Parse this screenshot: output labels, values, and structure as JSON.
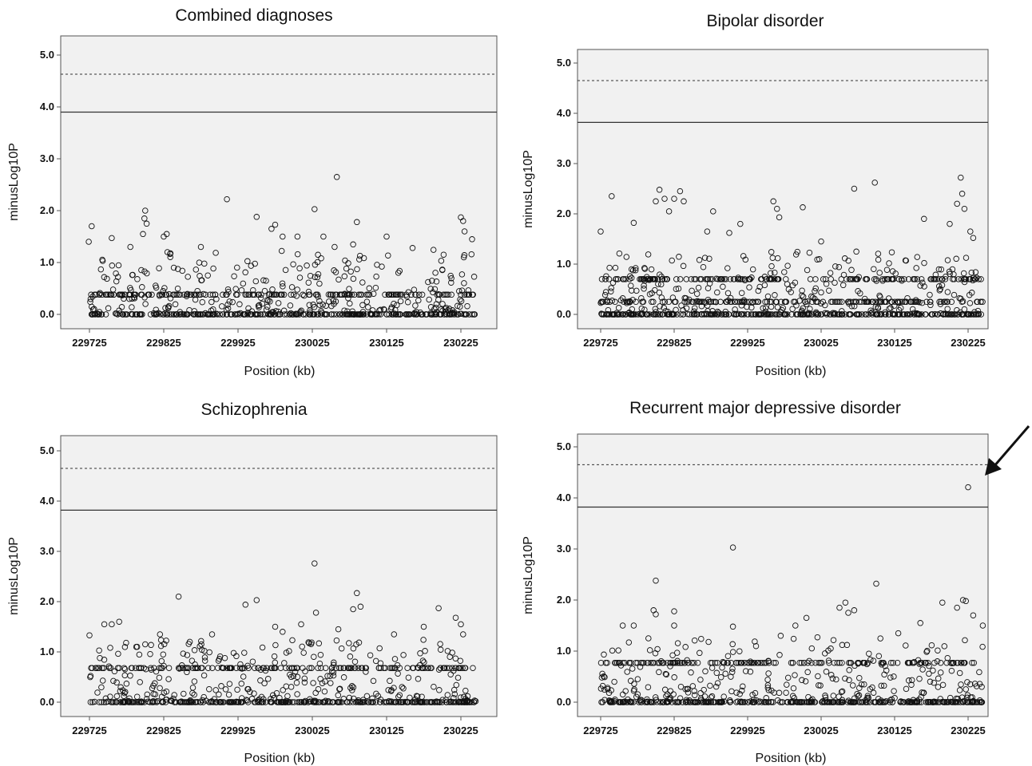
{
  "chart_data": [
    {
      "type": "scatter",
      "title": "Combined diagnoses",
      "xlabel": "Position (kb)",
      "ylabel": "minusLog10P",
      "x_ticks": [
        "229725",
        "229825",
        "229925",
        "230025",
        "230125",
        "230225"
      ],
      "y_ticks": [
        "0.0",
        "1.0",
        "2.0",
        "3.0",
        "4.0",
        "5.0"
      ],
      "xlim": [
        229700,
        230265
      ],
      "ylim": [
        -0.3,
        5.3
      ],
      "thresholds": {
        "solid": 3.9,
        "dotted": 4.63
      },
      "peak_points": [
        {
          "x": 229728,
          "y": 1.7
        },
        {
          "x": 229724,
          "y": 1.4
        },
        {
          "x": 229755,
          "y": 1.47
        },
        {
          "x": 229780,
          "y": 1.3
        },
        {
          "x": 229797,
          "y": 1.55
        },
        {
          "x": 229799,
          "y": 1.85
        },
        {
          "x": 229800,
          "y": 2.0
        },
        {
          "x": 229802,
          "y": 1.75
        },
        {
          "x": 229825,
          "y": 1.5
        },
        {
          "x": 229829,
          "y": 1.55
        },
        {
          "x": 229830,
          "y": 1.2
        },
        {
          "x": 229875,
          "y": 1.3
        },
        {
          "x": 229910,
          "y": 2.22
        },
        {
          "x": 229950,
          "y": 1.88
        },
        {
          "x": 229970,
          "y": 1.65
        },
        {
          "x": 229975,
          "y": 1.73
        },
        {
          "x": 229985,
          "y": 1.5
        },
        {
          "x": 230005,
          "y": 1.5
        },
        {
          "x": 230028,
          "y": 2.03
        },
        {
          "x": 230040,
          "y": 1.5
        },
        {
          "x": 230055,
          "y": 1.3
        },
        {
          "x": 230058,
          "y": 2.65
        },
        {
          "x": 230080,
          "y": 1.35
        },
        {
          "x": 230085,
          "y": 1.78
        },
        {
          "x": 230125,
          "y": 1.5
        },
        {
          "x": 230160,
          "y": 1.28
        },
        {
          "x": 230225,
          "y": 1.87
        },
        {
          "x": 230228,
          "y": 1.8
        },
        {
          "x": 230230,
          "y": 1.6
        },
        {
          "x": 230240,
          "y": 1.45
        }
      ],
      "bands": [
        0.0,
        0.38
      ]
    },
    {
      "type": "scatter",
      "title": "Bipolar disorder",
      "xlabel": "Position (kb)",
      "ylabel": "minusLog10P",
      "x_ticks": [
        "229725",
        "229825",
        "229925",
        "230025",
        "230125",
        "230225"
      ],
      "y_ticks": [
        "0.0",
        "1.0",
        "2.0",
        "3.0",
        "4.0",
        "5.0"
      ],
      "xlim": [
        229700,
        230265
      ],
      "ylim": [
        -0.3,
        5.3
      ],
      "thresholds": {
        "solid": 3.82,
        "dotted": 4.65
      },
      "peak_points": [
        {
          "x": 229725,
          "y": 1.65
        },
        {
          "x": 229740,
          "y": 2.35
        },
        {
          "x": 229770,
          "y": 1.82
        },
        {
          "x": 229800,
          "y": 2.25
        },
        {
          "x": 229805,
          "y": 2.48
        },
        {
          "x": 229812,
          "y": 2.3
        },
        {
          "x": 229818,
          "y": 2.05
        },
        {
          "x": 229825,
          "y": 2.3
        },
        {
          "x": 229833,
          "y": 2.45
        },
        {
          "x": 229838,
          "y": 2.25
        },
        {
          "x": 229870,
          "y": 1.65
        },
        {
          "x": 229878,
          "y": 2.05
        },
        {
          "x": 229900,
          "y": 1.62
        },
        {
          "x": 229915,
          "y": 1.8
        },
        {
          "x": 229960,
          "y": 2.25
        },
        {
          "x": 229965,
          "y": 2.1
        },
        {
          "x": 229968,
          "y": 1.93
        },
        {
          "x": 230000,
          "y": 2.13
        },
        {
          "x": 230025,
          "y": 1.45
        },
        {
          "x": 230070,
          "y": 2.5
        },
        {
          "x": 230098,
          "y": 2.62
        },
        {
          "x": 230165,
          "y": 1.9
        },
        {
          "x": 230200,
          "y": 1.8
        },
        {
          "x": 230210,
          "y": 2.2
        },
        {
          "x": 230215,
          "y": 2.72
        },
        {
          "x": 230217,
          "y": 2.4
        },
        {
          "x": 230220,
          "y": 2.1
        },
        {
          "x": 230228,
          "y": 1.65
        },
        {
          "x": 230232,
          "y": 1.52
        }
      ],
      "bands": [
        0.0,
        0.25,
        0.7
      ]
    },
    {
      "type": "scatter",
      "title": "Schizophrenia",
      "xlabel": "Position (kb)",
      "ylabel": "minusLog10P",
      "x_ticks": [
        "229725",
        "229825",
        "229925",
        "230025",
        "230125",
        "230225"
      ],
      "y_ticks": [
        "0.0",
        "1.0",
        "2.0",
        "3.0",
        "4.0",
        "5.0"
      ],
      "xlim": [
        229700,
        230265
      ],
      "ylim": [
        -0.3,
        5.3
      ],
      "thresholds": {
        "solid": 3.82,
        "dotted": 4.65
      },
      "peak_points": [
        {
          "x": 229725,
          "y": 1.33
        },
        {
          "x": 229745,
          "y": 1.55
        },
        {
          "x": 229755,
          "y": 1.55
        },
        {
          "x": 229765,
          "y": 1.6
        },
        {
          "x": 229800,
          "y": 1.15
        },
        {
          "x": 229820,
          "y": 1.35
        },
        {
          "x": 229845,
          "y": 2.1
        },
        {
          "x": 229860,
          "y": 1.2
        },
        {
          "x": 229890,
          "y": 1.35
        },
        {
          "x": 229935,
          "y": 1.94
        },
        {
          "x": 229950,
          "y": 2.03
        },
        {
          "x": 229975,
          "y": 1.5
        },
        {
          "x": 229985,
          "y": 1.4
        },
        {
          "x": 230010,
          "y": 1.55
        },
        {
          "x": 230028,
          "y": 2.76
        },
        {
          "x": 230030,
          "y": 1.78
        },
        {
          "x": 230060,
          "y": 1.45
        },
        {
          "x": 230080,
          "y": 1.85
        },
        {
          "x": 230085,
          "y": 2.17
        },
        {
          "x": 230090,
          "y": 1.9
        },
        {
          "x": 230135,
          "y": 1.35
        },
        {
          "x": 230175,
          "y": 1.5
        },
        {
          "x": 230195,
          "y": 1.87
        },
        {
          "x": 230218,
          "y": 1.68
        },
        {
          "x": 230225,
          "y": 1.55
        },
        {
          "x": 230228,
          "y": 1.35
        }
      ],
      "bands": [
        0.0,
        0.68
      ]
    },
    {
      "type": "scatter",
      "title": "Recurrent major depressive disorder",
      "xlabel": "Position (kb)",
      "ylabel": "minusLog10P",
      "x_ticks": [
        "229725",
        "229825",
        "229925",
        "230025",
        "230125",
        "230225"
      ],
      "y_ticks": [
        "0.0",
        "1.0",
        "2.0",
        "3.0",
        "4.0",
        "5.0"
      ],
      "xlim": [
        229700,
        230265
      ],
      "ylim": [
        -0.3,
        5.3
      ],
      "thresholds": {
        "solid": 3.82,
        "dotted": 4.65
      },
      "peak_points": [
        {
          "x": 229755,
          "y": 1.5
        },
        {
          "x": 229770,
          "y": 1.5
        },
        {
          "x": 229790,
          "y": 1.25
        },
        {
          "x": 229800,
          "y": 2.38
        },
        {
          "x": 229797,
          "y": 1.8
        },
        {
          "x": 229800,
          "y": 1.72
        },
        {
          "x": 229825,
          "y": 1.78
        },
        {
          "x": 229825,
          "y": 1.5
        },
        {
          "x": 229905,
          "y": 3.03
        },
        {
          "x": 229905,
          "y": 1.48
        },
        {
          "x": 229970,
          "y": 1.3
        },
        {
          "x": 229990,
          "y": 1.5
        },
        {
          "x": 230005,
          "y": 1.65
        },
        {
          "x": 230020,
          "y": 1.27
        },
        {
          "x": 230050,
          "y": 1.85
        },
        {
          "x": 230058,
          "y": 1.95
        },
        {
          "x": 230062,
          "y": 1.75
        },
        {
          "x": 230070,
          "y": 1.8
        },
        {
          "x": 230100,
          "y": 2.32
        },
        {
          "x": 230130,
          "y": 1.35
        },
        {
          "x": 230160,
          "y": 1.55
        },
        {
          "x": 230190,
          "y": 1.95
        },
        {
          "x": 230210,
          "y": 1.85
        },
        {
          "x": 230218,
          "y": 2.0
        },
        {
          "x": 230222,
          "y": 1.98
        },
        {
          "x": 230225,
          "y": 4.21
        },
        {
          "x": 230232,
          "y": 1.7
        },
        {
          "x": 230245,
          "y": 1.5
        }
      ],
      "bands": [
        0.0,
        0.77
      ],
      "annotation": "arrow"
    }
  ]
}
